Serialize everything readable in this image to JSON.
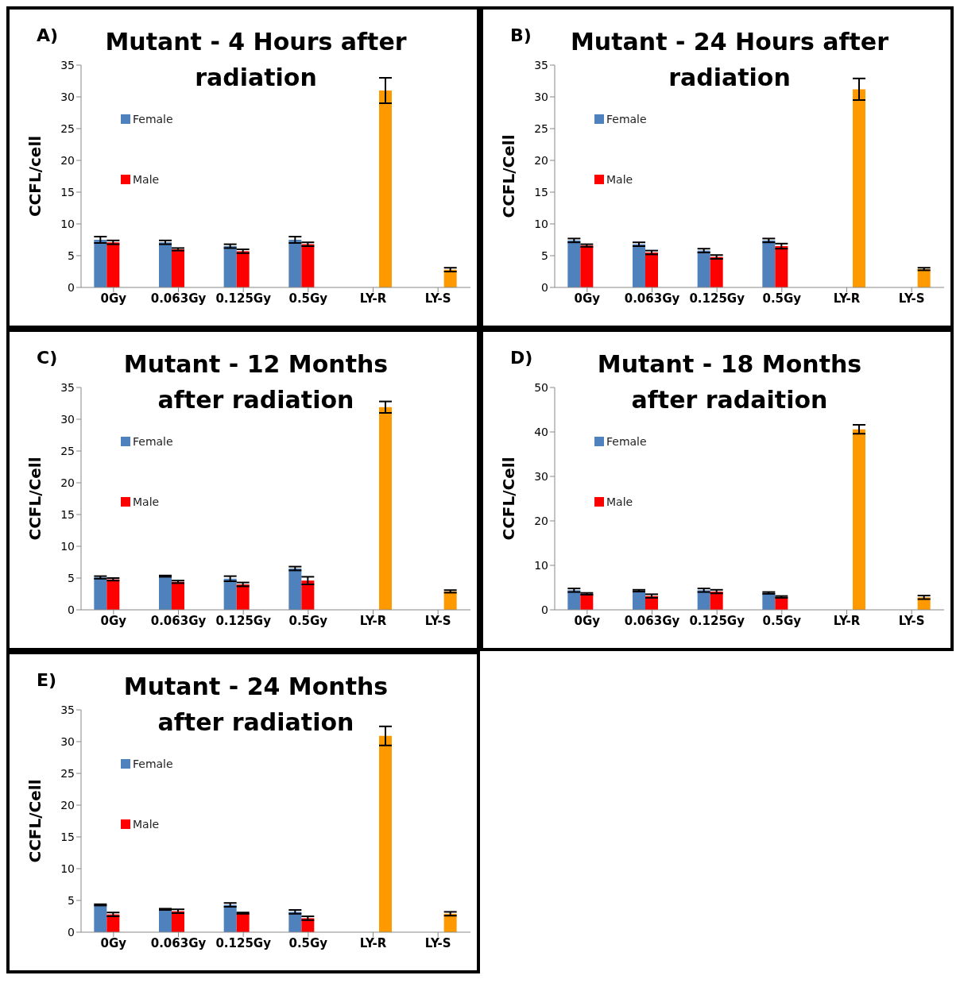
{
  "chart_data": [
    {
      "type": "bar",
      "annotations": [
        "A)"
      ],
      "title": "Mutant - 4 Hours after radiation",
      "ylabel": "CCFL/cell",
      "categories": [
        "0Gy",
        "0.063Gy",
        "0.125Gy",
        "0.5Gy",
        "LY-R",
        "LY-S"
      ],
      "ylim": [
        0,
        35
      ],
      "yticks": [
        0,
        5,
        10,
        15,
        20,
        25,
        30,
        35
      ],
      "legend": "left",
      "grid": false,
      "series": [
        {
          "name": "Female",
          "color": "#4f81bd",
          "values": [
            7.5,
            7.1,
            6.5,
            7.5,
            null,
            null
          ],
          "errors": [
            0.5,
            0.3,
            0.3,
            0.5,
            null,
            null
          ]
        },
        {
          "name": "Male",
          "color": "#ff0000",
          "values": [
            7.1,
            6.0,
            5.7,
            6.8,
            null,
            null
          ],
          "errors": [
            0.3,
            0.2,
            0.3,
            0.3,
            null,
            null
          ]
        },
        {
          "color": "#ff9900",
          "values": [
            null,
            null,
            null,
            null,
            31.0,
            2.8
          ],
          "errors": [
            null,
            null,
            null,
            null,
            2,
            0.3
          ]
        }
      ]
    },
    {
      "type": "bar",
      "annotations": [
        "B)"
      ],
      "title": "Mutant - 24 Hours after radiation",
      "ylabel": "CCFL/Cell",
      "categories": [
        "0Gy",
        "0.063Gy",
        "0.125Gy",
        "0.5Gy",
        "LY-R",
        "LY-S"
      ],
      "ylim": [
        0,
        35
      ],
      "yticks": [
        0,
        5,
        10,
        15,
        20,
        25,
        30,
        35
      ],
      "legend": "left",
      "grid": false,
      "series": [
        {
          "name": "Female",
          "color": "#4f81bd",
          "values": [
            7.4,
            6.8,
            5.8,
            7.4,
            null,
            null
          ],
          "errors": [
            0.3,
            0.3,
            0.3,
            0.3,
            null,
            null
          ]
        },
        {
          "name": "Male",
          "color": "#ff0000",
          "values": [
            6.6,
            5.5,
            4.8,
            6.5,
            null,
            null
          ],
          "errors": [
            0.2,
            0.3,
            0.3,
            0.4,
            null,
            null
          ]
        },
        {
          "color": "#ff9900",
          "values": [
            null,
            null,
            null,
            null,
            31.2,
            2.9
          ],
          "errors": [
            null,
            null,
            null,
            null,
            1.7,
            0.2
          ]
        }
      ]
    },
    {
      "type": "bar",
      "annotations": [
        "C)"
      ],
      "title": "Mutant - 12 Months after radiation",
      "ylabel": "CCFL/Cell",
      "categories": [
        "0Gy",
        "0.063Gy",
        "0.125Gy",
        "0.5Gy",
        "LY-R",
        "LY-S"
      ],
      "ylim": [
        0,
        35
      ],
      "yticks": [
        0,
        5,
        10,
        15,
        20,
        25,
        30,
        35
      ],
      "legend": "left",
      "grid": false,
      "series": [
        {
          "name": "Female",
          "color": "#4f81bd",
          "values": [
            5.1,
            5.3,
            4.9,
            6.5,
            null,
            null
          ],
          "errors": [
            0.2,
            0.1,
            0.4,
            0.3,
            null,
            null
          ]
        },
        {
          "name": "Male",
          "color": "#ff0000",
          "values": [
            4.8,
            4.4,
            4.0,
            4.6,
            null,
            null
          ],
          "errors": [
            0.2,
            0.2,
            0.3,
            0.6,
            null,
            null
          ]
        },
        {
          "color": "#ff9900",
          "values": [
            null,
            null,
            null,
            null,
            31.9,
            2.9
          ],
          "errors": [
            null,
            null,
            null,
            null,
            0.9,
            0.2
          ]
        }
      ]
    },
    {
      "type": "bar",
      "annotations": [
        "D)"
      ],
      "title": "Mutant - 18 Months after radaition",
      "ylabel": "CCFL/Cell",
      "categories": [
        "0Gy",
        "0.063Gy",
        "0.125Gy",
        "0.5Gy",
        "LY-R",
        "LY-S"
      ],
      "ylim": [
        0,
        50
      ],
      "yticks": [
        0,
        10,
        20,
        30,
        40,
        50
      ],
      "legend": "left",
      "grid": false,
      "series": [
        {
          "name": "Female",
          "color": "#4f81bd",
          "values": [
            4.4,
            4.3,
            4.4,
            3.8,
            null,
            null
          ],
          "errors": [
            0.4,
            0.2,
            0.4,
            0.2,
            null,
            null
          ]
        },
        {
          "name": "Male",
          "color": "#ff0000",
          "values": [
            3.6,
            3.1,
            4.1,
            2.9,
            null,
            null
          ],
          "errors": [
            0.2,
            0.4,
            0.4,
            0.2,
            null,
            null
          ]
        },
        {
          "color": "#ff9900",
          "values": [
            null,
            null,
            null,
            null,
            40.6,
            2.8
          ],
          "errors": [
            null,
            null,
            null,
            null,
            1,
            0.4
          ]
        }
      ]
    },
    {
      "type": "bar",
      "annotations": [
        "E)"
      ],
      "title": "Mutant - 24 Months after radiation",
      "ylabel": "CCFL/Cell",
      "categories": [
        "0Gy",
        "0.063Gy",
        "0.125Gy",
        "0.5Gy",
        "LY-R",
        "LY-S"
      ],
      "ylim": [
        0,
        35
      ],
      "yticks": [
        0,
        5,
        10,
        15,
        20,
        25,
        30,
        35
      ],
      "legend": "left",
      "grid": false,
      "series": [
        {
          "name": "Female",
          "color": "#4f81bd",
          "values": [
            4.3,
            3.6,
            4.3,
            3.2,
            null,
            null
          ],
          "errors": [
            0.1,
            0.1,
            0.3,
            0.3,
            null,
            null
          ]
        },
        {
          "name": "Male",
          "color": "#ff0000",
          "values": [
            2.8,
            3.3,
            3.0,
            2.2,
            null,
            null
          ],
          "errors": [
            0.3,
            0.3,
            0.1,
            0.3,
            null,
            null
          ]
        },
        {
          "color": "#ff9900",
          "values": [
            null,
            null,
            null,
            null,
            30.9,
            2.9
          ],
          "errors": [
            null,
            null,
            null,
            null,
            1.5,
            0.3
          ]
        }
      ]
    }
  ]
}
